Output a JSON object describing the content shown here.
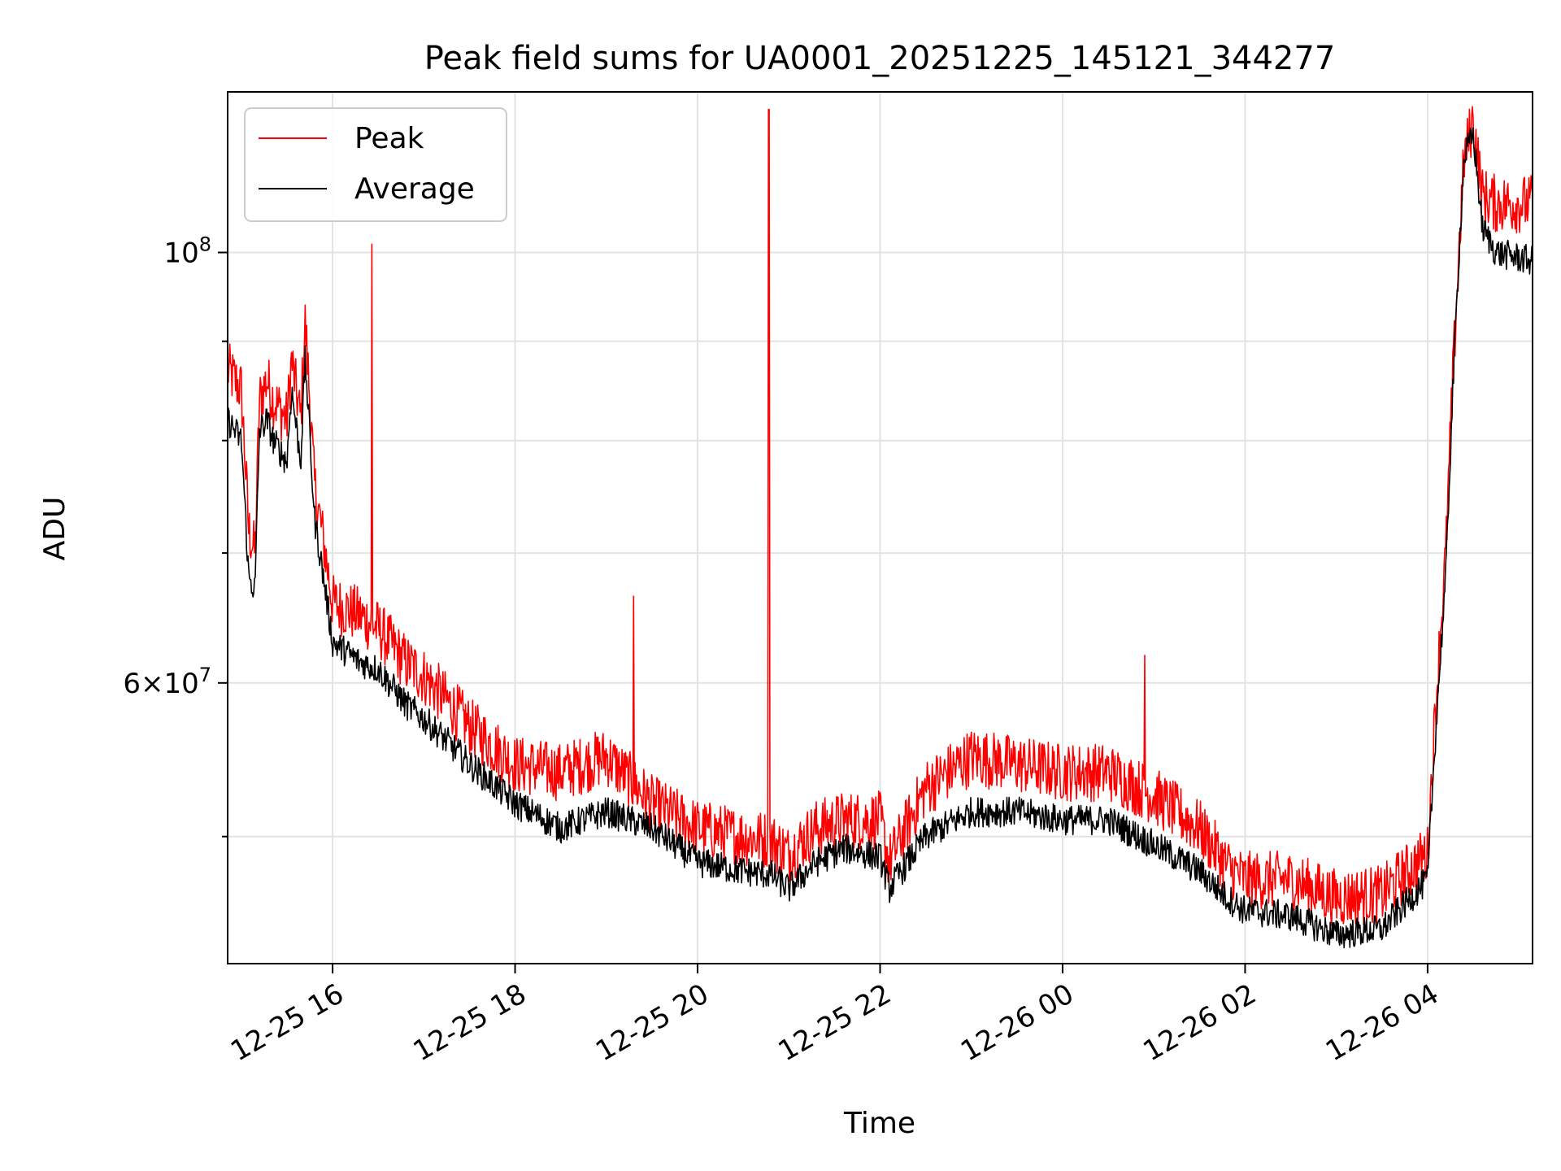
{
  "chart_data": {
    "type": "line",
    "title": "Peak field sums for UA0001_20251225_145121_344277",
    "xlabel": "Time",
    "ylabel": "ADU",
    "yscale": "log",
    "xlim": [
      -1.15,
      13.15
    ],
    "ylim": [
      43000000,
      121000000
    ],
    "grid": true,
    "legend_position": "upper-left",
    "x_ticks": [
      {
        "value": 0,
        "label": "12-25 16"
      },
      {
        "value": 2,
        "label": "12-25 18"
      },
      {
        "value": 4,
        "label": "12-25 20"
      },
      {
        "value": 6,
        "label": "12-25 22"
      },
      {
        "value": 8,
        "label": "12-26 00"
      },
      {
        "value": 10,
        "label": "12-26 02"
      },
      {
        "value": 12,
        "label": "12-26 04"
      }
    ],
    "y_ticks": [
      {
        "value": 100000000,
        "base": "10",
        "exp": "8",
        "label": "10^8"
      },
      {
        "value": 60000000,
        "mant": "6",
        "base": "10",
        "exp": "7",
        "label": "6×10^7"
      }
    ],
    "y_minor_grid": [
      50000000,
      70000000,
      80000000,
      90000000
    ],
    "series": [
      {
        "name": "Peak",
        "color": "#ff0000",
        "x": [
          -1.15,
          -1.0,
          -0.92,
          -0.85,
          -0.8,
          -0.72,
          -0.65,
          -0.5,
          -0.45,
          -0.35,
          -0.3,
          -0.2,
          -0.1,
          0.0,
          0.3,
          0.5,
          0.8,
          1.0,
          1.5,
          2.0,
          2.5,
          3.0,
          3.5,
          4.0,
          4.5,
          4.8,
          5.0,
          5.3,
          5.6,
          6.0,
          6.1,
          6.5,
          7.0,
          7.5,
          8.0,
          8.5,
          9.0,
          9.5,
          9.8,
          10.0,
          10.5,
          11.0,
          11.5,
          12.0,
          12.2,
          12.4,
          12.5,
          12.6,
          12.75,
          13.15
        ],
        "values": [
          87,
          85,
          72,
          70,
          84,
          86,
          84,
          82,
          88,
          82,
          92,
          76,
          71,
          66,
          65,
          64,
          61.5,
          60.5,
          57,
          54.5,
          54,
          55,
          52,
          50.5,
          50,
          49.8,
          49,
          50.5,
          51,
          51,
          48.5,
          53,
          55,
          54.5,
          54,
          54,
          52.5,
          50.5,
          48.3,
          47.5,
          47.5,
          46.5,
          46.7,
          49,
          70,
          112,
          117,
          107,
          106,
          106
        ],
        "spikes": [
          {
            "x": 0.43,
            "value": 101
          },
          {
            "x": 3.3,
            "value": 66.5
          },
          {
            "x": 4.78,
            "value": 118.5
          },
          {
            "x": 8.9,
            "value": 62
          }
        ]
      },
      {
        "name": "Average",
        "color": "#000000",
        "x": [
          -1.15,
          -1.0,
          -0.92,
          -0.85,
          -0.8,
          -0.72,
          -0.65,
          -0.5,
          -0.45,
          -0.35,
          -0.3,
          -0.2,
          -0.1,
          0.0,
          0.3,
          0.5,
          0.8,
          1.0,
          1.5,
          2.0,
          2.5,
          3.0,
          3.5,
          4.0,
          4.5,
          4.8,
          5.0,
          5.3,
          5.6,
          6.0,
          6.1,
          6.5,
          7.0,
          7.5,
          8.0,
          8.5,
          9.0,
          9.5,
          9.8,
          10.0,
          10.5,
          11.0,
          11.5,
          12.0,
          12.2,
          12.4,
          12.5,
          12.6,
          12.75,
          13.15
        ],
        "values": [
          82,
          80,
          68,
          67,
          81,
          82,
          80,
          78,
          85,
          78,
          88,
          73,
          68,
          63,
          61.5,
          61,
          58.5,
          57.5,
          54.5,
          52,
          50.5,
          51.5,
          50.5,
          48.5,
          48,
          47.8,
          47,
          48.5,
          49.3,
          48.8,
          47,
          50,
          51.5,
          51.5,
          51,
          51,
          49.5,
          48,
          46.5,
          45.8,
          45.5,
          44.5,
          44.8,
          47.5,
          68,
          112,
          115,
          103,
          100,
          99
        ]
      }
    ]
  }
}
